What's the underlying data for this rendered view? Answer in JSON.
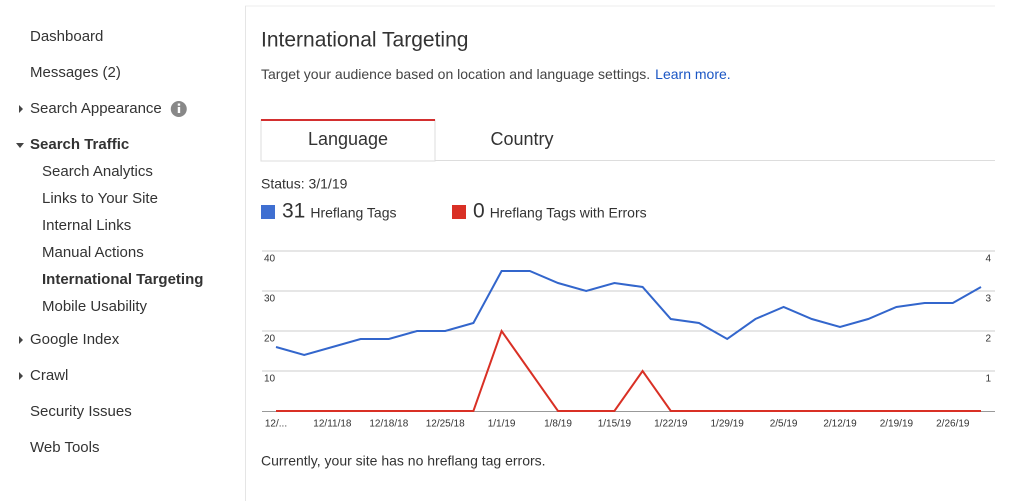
{
  "sidebar": {
    "items": [
      {
        "label": "Dashboard"
      },
      {
        "label": "Messages (2)"
      },
      {
        "label": "Search Appearance",
        "expandable": true,
        "info_icon": true
      },
      {
        "label": "Search Traffic",
        "expandable": true,
        "expanded": true,
        "children": [
          {
            "label": "Search Analytics"
          },
          {
            "label": "Links to Your Site"
          },
          {
            "label": "Internal Links"
          },
          {
            "label": "Manual Actions"
          },
          {
            "label": "International Targeting",
            "selected": true
          },
          {
            "label": "Mobile Usability"
          }
        ]
      },
      {
        "label": "Google Index",
        "expandable": true
      },
      {
        "label": "Crawl",
        "expandable": true
      },
      {
        "label": "Security Issues"
      },
      {
        "label": "Web Tools"
      }
    ]
  },
  "header": {
    "title": "International Targeting",
    "subtitle": "Target your audience based on location and language settings.",
    "link": "Learn more."
  },
  "tabs": [
    {
      "label": "Language",
      "selected": true
    },
    {
      "label": "Country"
    }
  ],
  "status": "Status: 3/1/19",
  "legend": [
    {
      "count": 31,
      "label": "Hreflang Tags",
      "color": "#3f6fd1"
    },
    {
      "count": 0,
      "label": "Hreflang Tags with Errors",
      "color": "#d93025"
    }
  ],
  "footer": "Currently, your site has no hreflang tag errors.",
  "chart_data": {
    "type": "line",
    "categories": [
      "12/...",
      null,
      "12/11/18",
      null,
      "12/18/18",
      null,
      "12/25/18",
      null,
      "1/1/19",
      null,
      "1/8/19",
      null,
      "1/15/19",
      null,
      "1/22/19",
      null,
      "1/29/19",
      null,
      "2/5/19",
      null,
      "2/12/19",
      null,
      "2/19/19",
      null,
      "2/26/19",
      null
    ],
    "series": [
      {
        "name": "Hreflang Tags",
        "color": "#3366cc",
        "values": [
          16,
          14,
          16,
          18,
          18,
          20,
          20,
          22,
          35,
          35,
          32,
          30,
          32,
          31,
          23,
          22,
          18,
          23,
          26,
          23,
          21,
          23,
          26,
          27,
          27,
          31
        ]
      },
      {
        "name": "Hreflang Tags with Errors",
        "color": "#d93025",
        "axis": "y2",
        "values": [
          0,
          0,
          0,
          0,
          0,
          0,
          0,
          0,
          2,
          1,
          0,
          0,
          0,
          1,
          0,
          0,
          0,
          0,
          0,
          0,
          0,
          0,
          0,
          0,
          0,
          0
        ]
      }
    ],
    "ylim": [
      0,
      40
    ],
    "yticks": [
      10,
      20,
      30,
      40
    ],
    "y2lim": [
      0,
      4
    ],
    "y2ticks": [
      1,
      2,
      3,
      4
    ],
    "grid": true
  }
}
